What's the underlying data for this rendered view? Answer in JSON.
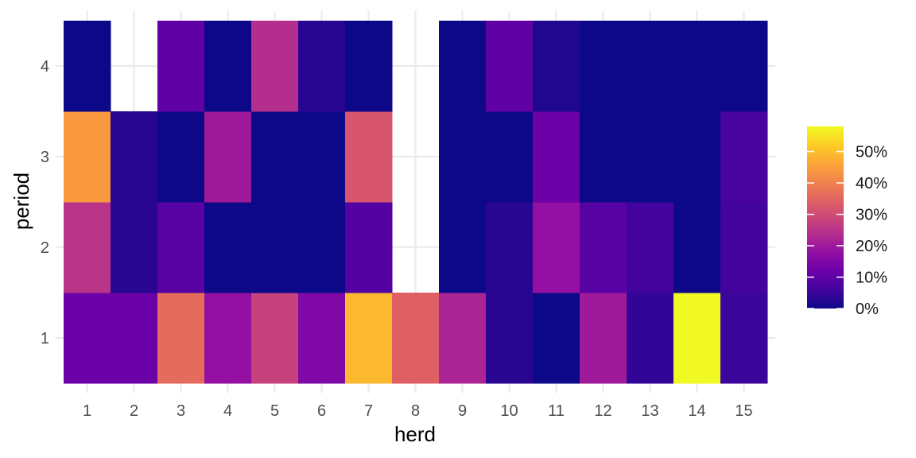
{
  "chart_data": {
    "type": "heatmap",
    "title": "",
    "xlabel": "herd",
    "ylabel": "period",
    "x_categories": [
      "1",
      "2",
      "3",
      "4",
      "5",
      "6",
      "7",
      "8",
      "9",
      "10",
      "11",
      "12",
      "13",
      "14",
      "15"
    ],
    "y_categories": [
      "1",
      "2",
      "3",
      "4"
    ],
    "value_unit": "percent",
    "values_by_period": [
      [
        12,
        12,
        36,
        18,
        28,
        15,
        49,
        34,
        22,
        3,
        0,
        20,
        4,
        58,
        5
      ],
      [
        25,
        3,
        9,
        0,
        0,
        0,
        8,
        null,
        0,
        3,
        18,
        9,
        6,
        0,
        6
      ],
      [
        44,
        3,
        0,
        20,
        0,
        0,
        32,
        null,
        0,
        0,
        12,
        0,
        0,
        0,
        7
      ],
      [
        0,
        null,
        10,
        0,
        24,
        3,
        0,
        null,
        0,
        10,
        2,
        0,
        0,
        0,
        0
      ]
    ],
    "legend": {
      "placement": "right",
      "ticks": [
        "0%",
        "10%",
        "20%",
        "30%",
        "40%",
        "50%"
      ],
      "tick_values": [
        0,
        10,
        20,
        30,
        40,
        50
      ],
      "range": [
        0,
        58
      ]
    },
    "colorscale": "plasma",
    "grid": true
  }
}
